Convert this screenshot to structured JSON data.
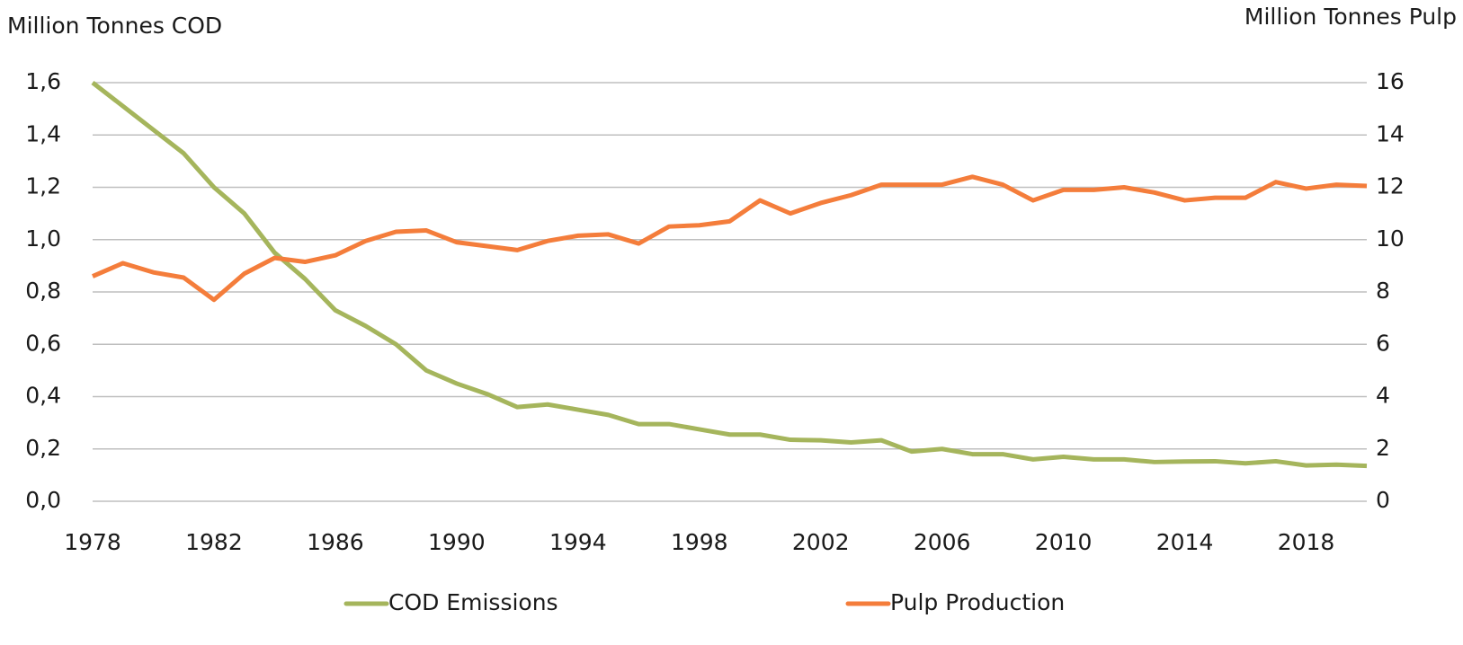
{
  "chart_data": {
    "type": "line",
    "y_label": "Million Tonnes COD",
    "y2_label": "Million Tonnes Pulp",
    "x": [
      1978,
      1979,
      1980,
      1981,
      1982,
      1983,
      1984,
      1985,
      1986,
      1987,
      1988,
      1989,
      1990,
      1991,
      1992,
      1993,
      1994,
      1995,
      1996,
      1997,
      1998,
      1999,
      2000,
      2001,
      2002,
      2003,
      2004,
      2005,
      2006,
      2007,
      2008,
      2009,
      2010,
      2011,
      2012,
      2013,
      2014,
      2015,
      2016,
      2017,
      2018,
      2019,
      2020
    ],
    "series": [
      {
        "name": "COD Emissions",
        "color": "#a5b55c",
        "values": [
          1.6,
          1.51,
          1.42,
          1.33,
          1.2,
          1.1,
          0.95,
          0.85,
          0.73,
          0.67,
          0.6,
          0.5,
          0.45,
          0.41,
          0.36,
          0.37,
          0.35,
          0.33,
          0.295,
          0.295,
          0.275,
          0.255,
          0.255,
          0.235,
          0.233,
          0.225,
          0.233,
          0.19,
          0.2,
          0.18,
          0.18,
          0.16,
          0.17,
          0.16,
          0.16,
          0.15,
          0.152,
          0.153,
          0.145,
          0.153,
          0.137,
          0.14,
          0.135
        ]
      },
      {
        "name": "Pulp Production",
        "color": "#f47d3b",
        "axis": "y2",
        "values": [
          8.6,
          9.1,
          8.75,
          8.55,
          7.7,
          8.7,
          9.3,
          9.15,
          9.4,
          9.95,
          10.3,
          10.35,
          9.9,
          9.75,
          9.6,
          9.95,
          10.15,
          10.2,
          9.85,
          10.5,
          10.55,
          10.7,
          11.5,
          11.0,
          11.4,
          11.7,
          12.1,
          12.1,
          12.1,
          12.4,
          12.1,
          11.5,
          11.9,
          11.9,
          12.0,
          11.8,
          11.5,
          11.6,
          11.6,
          12.2,
          11.95,
          12.1,
          12.05
        ]
      }
    ],
    "xlim": [
      1978,
      2020
    ],
    "xticks": [
      1978,
      1982,
      1986,
      1990,
      1994,
      1998,
      2002,
      2006,
      2010,
      2014,
      2018
    ],
    "ylim": [
      0,
      1.6
    ],
    "yticks": [
      {
        "value": 0,
        "label": "0,0"
      },
      {
        "value": 0.2,
        "label": "0,2"
      },
      {
        "value": 0.4,
        "label": "0,4"
      },
      {
        "value": 0.6,
        "label": "0,6"
      },
      {
        "value": 0.8,
        "label": "0,8"
      },
      {
        "value": 1.0,
        "label": "1,0"
      },
      {
        "value": 1.2,
        "label": "1,2"
      },
      {
        "value": 1.4,
        "label": "1,4"
      },
      {
        "value": 1.6,
        "label": "1,6"
      }
    ],
    "y2lim": [
      0,
      16
    ],
    "y2ticks": [
      0,
      2,
      4,
      6,
      8,
      10,
      12,
      14,
      16
    ],
    "grid": true,
    "legend": "bottom"
  }
}
